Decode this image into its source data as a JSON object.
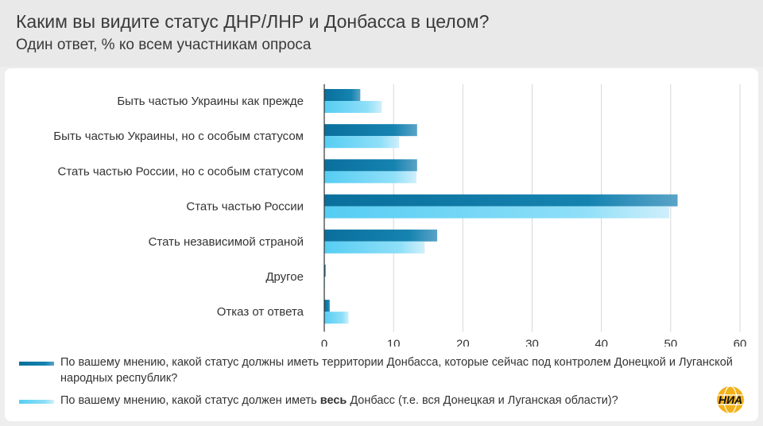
{
  "header": {
    "title": "Каким вы видите статус ДНР/ЛНР и Донбасса в целом?",
    "subtitle": "Один ответ, % ко всем участникам опроса"
  },
  "colors": {
    "series_dark": "#0f7aa8",
    "series_light": "#63d2f4",
    "axis": "#333333",
    "grid": "#d6d6d6",
    "logo_bg": "#f3b21a"
  },
  "chart_data": {
    "type": "bar",
    "orientation": "horizontal",
    "categories": [
      "Быть частью Украины как прежде",
      "Быть частью Украины, но с особым статусом",
      "Стать частью России, но с особым статусом",
      "Стать частью России",
      "Стать независимой страной",
      "Другое",
      "Отказ от ответа"
    ],
    "series": [
      {
        "values": [
          5.2,
          13.4,
          13.4,
          51,
          16.3,
          0.2,
          0.8
        ]
      },
      {
        "values": [
          8.3,
          10.8,
          13.3,
          49.8,
          14.5,
          0.1,
          3.5
        ]
      }
    ],
    "xlim": [
      0,
      60
    ],
    "xticks": [
      "0",
      "10",
      "20",
      "30",
      "40",
      "50",
      "60"
    ],
    "grid": true
  },
  "legend": {
    "items": [
      {
        "text": "По вашему мнению, какой статус должны иметь территории Донбасса, которые сейчас под контролем Донецкой и Луганской народных республик?"
      },
      {
        "text_before": "По вашему мнению, какой статус должен иметь ",
        "text_bold": "весь",
        "text_after": " Донбасс (т.е. вся Донецкая и Луганская области)?"
      }
    ]
  },
  "logo": {
    "text": "НИА"
  }
}
